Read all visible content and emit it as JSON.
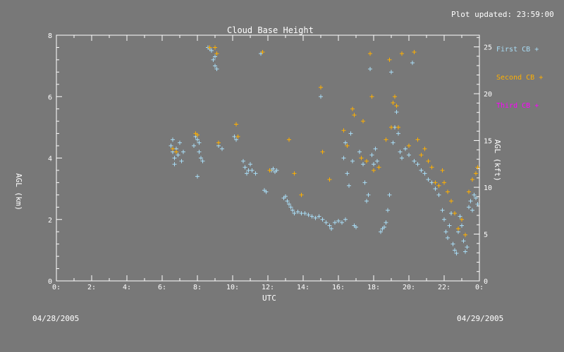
{
  "header": {
    "updated": "Plot updated: 23:59:00"
  },
  "footer": {
    "date_left": "04/28/2005",
    "date_right": "04/29/2005"
  },
  "colors": {
    "background": "#787878",
    "axes": "#ffffff",
    "first_cb": "#a8dcf5",
    "second_cb": "#ffb000",
    "third_cb": "#ff00ff"
  },
  "chart_data": {
    "type": "scatter",
    "title": "Cloud Base Height",
    "xlabel": "UTC",
    "ylabel_left": "AGL (km)",
    "ylabel_right": "AGL (kft)",
    "xlim": [
      0,
      24
    ],
    "ylim_left": [
      0,
      8
    ],
    "ylim_right": [
      0,
      26.25
    ],
    "x_ticks": [
      "0:",
      "2:",
      "4:",
      "6:",
      "8:",
      "10:",
      "12:",
      "14:",
      "16:",
      "18:",
      "20:",
      "22:",
      "0:"
    ],
    "y_ticks_left": [
      "0",
      "2",
      "4",
      "6",
      "8"
    ],
    "y_ticks_right": [
      "0",
      "5",
      "10",
      "15",
      "20",
      "25"
    ],
    "marker": "+",
    "legend_position": "right",
    "series": [
      {
        "name": "First CB",
        "color": "#a8dcf5",
        "points": [
          [
            6.5,
            4.4
          ],
          [
            6.6,
            4.2
          ],
          [
            6.6,
            4.6
          ],
          [
            6.7,
            4.0
          ],
          [
            6.7,
            3.8
          ],
          [
            6.8,
            4.3
          ],
          [
            6.9,
            4.1
          ],
          [
            7.0,
            4.5
          ],
          [
            7.1,
            3.9
          ],
          [
            7.2,
            4.2
          ],
          [
            7.8,
            4.4
          ],
          [
            7.9,
            4.7
          ],
          [
            8.0,
            4.6
          ],
          [
            8.0,
            3.4
          ],
          [
            8.1,
            4.2
          ],
          [
            8.1,
            4.5
          ],
          [
            8.2,
            4.0
          ],
          [
            8.3,
            3.9
          ],
          [
            8.6,
            7.6
          ],
          [
            8.7,
            7.55
          ],
          [
            8.8,
            7.5
          ],
          [
            8.9,
            7.2
          ],
          [
            9.0,
            7.3
          ],
          [
            9.0,
            7.0
          ],
          [
            9.1,
            6.9
          ],
          [
            9.2,
            4.4
          ],
          [
            9.4,
            4.3
          ],
          [
            10.1,
            4.7
          ],
          [
            10.2,
            4.6
          ],
          [
            10.6,
            3.9
          ],
          [
            10.7,
            3.7
          ],
          [
            10.8,
            3.5
          ],
          [
            10.9,
            3.6
          ],
          [
            11.0,
            3.8
          ],
          [
            11.1,
            3.6
          ],
          [
            11.3,
            3.5
          ],
          [
            11.6,
            7.4
          ],
          [
            11.8,
            2.95
          ],
          [
            11.9,
            2.9
          ],
          [
            12.2,
            3.6
          ],
          [
            12.3,
            3.65
          ],
          [
            12.4,
            3.55
          ],
          [
            12.5,
            3.6
          ],
          [
            12.9,
            2.7
          ],
          [
            13.0,
            2.75
          ],
          [
            13.1,
            2.6
          ],
          [
            13.2,
            2.5
          ],
          [
            13.3,
            2.4
          ],
          [
            13.4,
            2.3
          ],
          [
            13.5,
            2.2
          ],
          [
            13.7,
            2.25
          ],
          [
            13.9,
            2.2
          ],
          [
            14.1,
            2.2
          ],
          [
            14.3,
            2.15
          ],
          [
            14.5,
            2.1
          ],
          [
            14.7,
            2.05
          ],
          [
            14.9,
            2.1
          ],
          [
            15.0,
            6.0
          ],
          [
            15.1,
            2.0
          ],
          [
            15.3,
            1.9
          ],
          [
            15.5,
            1.8
          ],
          [
            15.6,
            1.7
          ],
          [
            15.8,
            1.9
          ],
          [
            16.0,
            1.95
          ],
          [
            16.2,
            1.9
          ],
          [
            16.4,
            2.0
          ],
          [
            16.3,
            4.0
          ],
          [
            16.4,
            4.5
          ],
          [
            16.5,
            3.5
          ],
          [
            16.6,
            3.1
          ],
          [
            16.7,
            4.8
          ],
          [
            16.8,
            3.9
          ],
          [
            16.9,
            1.8
          ],
          [
            17.0,
            1.75
          ],
          [
            17.2,
            4.2
          ],
          [
            17.3,
            4.0
          ],
          [
            17.4,
            3.8
          ],
          [
            17.5,
            3.2
          ],
          [
            17.6,
            2.6
          ],
          [
            17.7,
            2.8
          ],
          [
            17.8,
            6.9
          ],
          [
            17.9,
            4.1
          ],
          [
            18.0,
            3.8
          ],
          [
            18.1,
            4.3
          ],
          [
            18.2,
            3.9
          ],
          [
            18.4,
            1.6
          ],
          [
            18.5,
            1.7
          ],
          [
            18.6,
            1.75
          ],
          [
            18.7,
            1.9
          ],
          [
            18.8,
            2.3
          ],
          [
            18.9,
            2.8
          ],
          [
            19.0,
            6.8
          ],
          [
            19.1,
            4.5
          ],
          [
            19.2,
            5.0
          ],
          [
            19.3,
            5.5
          ],
          [
            19.4,
            4.8
          ],
          [
            19.5,
            4.2
          ],
          [
            19.6,
            4.0
          ],
          [
            19.8,
            4.3
          ],
          [
            20.0,
            4.1
          ],
          [
            20.2,
            7.1
          ],
          [
            20.3,
            3.9
          ],
          [
            20.5,
            3.8
          ],
          [
            20.7,
            3.6
          ],
          [
            20.9,
            3.5
          ],
          [
            21.1,
            3.3
          ],
          [
            21.3,
            3.2
          ],
          [
            21.5,
            3.0
          ],
          [
            21.7,
            2.8
          ],
          [
            21.9,
            2.3
          ],
          [
            22.0,
            2.0
          ],
          [
            22.1,
            1.6
          ],
          [
            22.2,
            1.4
          ],
          [
            22.3,
            1.8
          ],
          [
            22.4,
            2.2
          ],
          [
            22.5,
            1.2
          ],
          [
            22.6,
            1.0
          ],
          [
            22.7,
            0.9
          ],
          [
            22.8,
            1.6
          ],
          [
            22.9,
            2.1
          ],
          [
            23.0,
            1.8
          ],
          [
            23.1,
            1.3
          ],
          [
            23.2,
            0.95
          ],
          [
            23.3,
            1.1
          ],
          [
            23.4,
            2.4
          ],
          [
            23.5,
            2.6
          ],
          [
            23.6,
            2.3
          ],
          [
            23.7,
            2.8
          ],
          [
            23.8,
            2.7
          ],
          [
            23.9,
            2.5
          ]
        ]
      },
      {
        "name": "Second CB",
        "color": "#ffb000",
        "points": [
          [
            6.6,
            4.3
          ],
          [
            6.8,
            4.2
          ],
          [
            7.9,
            4.8
          ],
          [
            8.0,
            4.75
          ],
          [
            8.7,
            7.6
          ],
          [
            9.0,
            7.6
          ],
          [
            9.1,
            7.4
          ],
          [
            9.2,
            4.5
          ],
          [
            10.2,
            5.1
          ],
          [
            10.3,
            4.7
          ],
          [
            11.7,
            7.45
          ],
          [
            12.1,
            3.6
          ],
          [
            13.2,
            4.6
          ],
          [
            13.5,
            3.5
          ],
          [
            13.9,
            2.8
          ],
          [
            15.0,
            6.3
          ],
          [
            15.1,
            4.2
          ],
          [
            15.5,
            3.3
          ],
          [
            16.3,
            4.9
          ],
          [
            16.5,
            4.4
          ],
          [
            16.8,
            5.6
          ],
          [
            16.9,
            5.4
          ],
          [
            17.3,
            4.0
          ],
          [
            17.4,
            5.2
          ],
          [
            17.6,
            3.9
          ],
          [
            17.8,
            7.4
          ],
          [
            17.9,
            6.0
          ],
          [
            18.0,
            3.6
          ],
          [
            18.3,
            3.7
          ],
          [
            18.7,
            4.6
          ],
          [
            18.9,
            7.2
          ],
          [
            19.0,
            5.0
          ],
          [
            19.1,
            5.8
          ],
          [
            19.2,
            6.0
          ],
          [
            19.3,
            5.7
          ],
          [
            19.4,
            5.0
          ],
          [
            19.6,
            7.4
          ],
          [
            20.0,
            4.4
          ],
          [
            20.3,
            7.45
          ],
          [
            20.5,
            4.6
          ],
          [
            20.7,
            4.1
          ],
          [
            20.9,
            4.3
          ],
          [
            21.1,
            3.9
          ],
          [
            21.3,
            3.7
          ],
          [
            21.5,
            3.2
          ],
          [
            21.7,
            3.1
          ],
          [
            21.9,
            3.6
          ],
          [
            22.0,
            3.2
          ],
          [
            22.2,
            2.9
          ],
          [
            22.4,
            2.6
          ],
          [
            22.6,
            2.2
          ],
          [
            22.8,
            1.7
          ],
          [
            23.0,
            2.0
          ],
          [
            23.2,
            1.5
          ],
          [
            23.4,
            2.9
          ],
          [
            23.6,
            3.3
          ],
          [
            23.8,
            3.5
          ],
          [
            23.9,
            3.7
          ]
        ]
      },
      {
        "name": "Third CB",
        "color": "#ff00ff",
        "points": []
      }
    ]
  }
}
